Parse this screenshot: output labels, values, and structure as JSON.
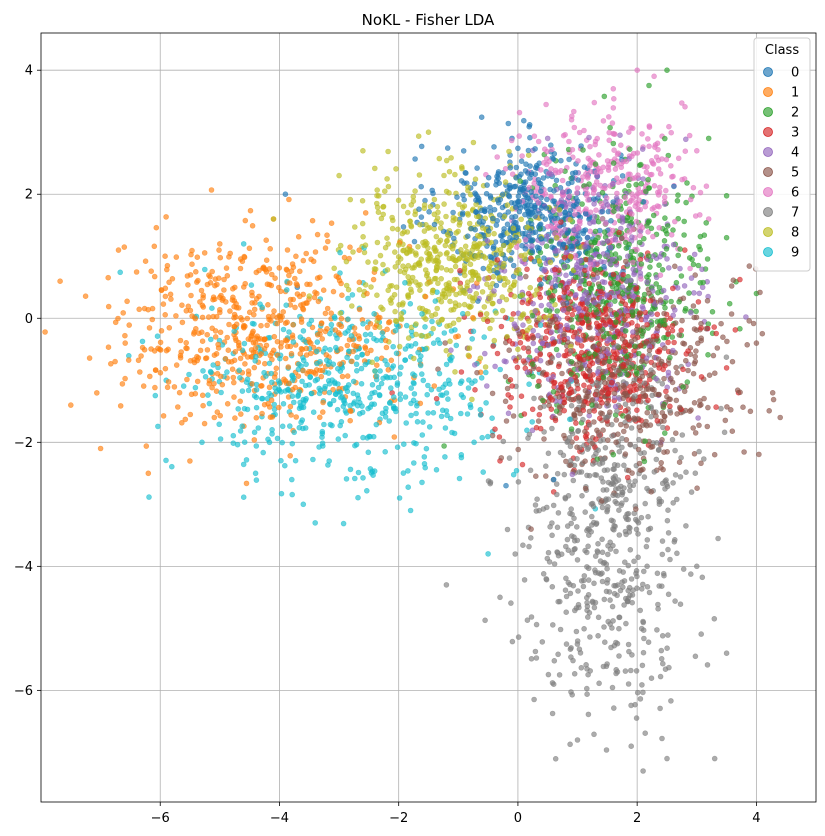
{
  "chart_data": {
    "type": "scatter",
    "title": "NoKL - Fisher LDA",
    "xlabel": "",
    "ylabel": "",
    "xlim": [
      -8.0,
      5.0
    ],
    "ylim": [
      -7.8,
      4.6
    ],
    "xticks": [
      -6,
      -4,
      -2,
      0,
      2,
      4
    ],
    "yticks": [
      -6,
      -4,
      -2,
      0,
      2,
      4
    ],
    "xtick_labels": [
      "−6",
      "−4",
      "−2",
      "0",
      "2",
      "4"
    ],
    "ytick_labels": [
      "−6",
      "−4",
      "−2",
      "0",
      "2",
      "4"
    ],
    "grid": true,
    "legend": {
      "title": "Class",
      "placement": "top-right"
    },
    "point_alpha": 0.65,
    "series": [
      {
        "name": "0",
        "color": "#1f77b4",
        "count": 450,
        "clusters": [
          {
            "center": [
              0.2,
              1.7
            ],
            "spread": [
              0.75,
              0.55
            ],
            "weight": 1.0
          }
        ],
        "notable": [
          [
            -3.9,
            2.0
          ],
          [
            -3.7,
            0.5
          ],
          [
            -0.2,
            -2.7
          ],
          [
            0.6,
            -2.6
          ],
          [
            -0.1,
            2.9
          ]
        ]
      },
      {
        "name": "1",
        "color": "#ff7f0e",
        "count": 600,
        "clusters": [
          {
            "center": [
              -4.3,
              -0.2
            ],
            "spread": [
              1.25,
              0.75
            ],
            "weight": 1.0
          }
        ],
        "notable": [
          [
            -7.5,
            -1.4
          ],
          [
            -7.0,
            -2.1
          ],
          [
            -6.7,
            1.1
          ],
          [
            -6.2,
            -2.5
          ],
          [
            -5.0,
            1.2
          ],
          [
            -4.1,
            1.6
          ],
          [
            -3.0,
            -0.1
          ]
        ]
      },
      {
        "name": "2",
        "color": "#2ca02c",
        "count": 450,
        "clusters": [
          {
            "center": [
              1.7,
              0.6
            ],
            "spread": [
              0.75,
              0.95
            ],
            "weight": 1.0
          }
        ],
        "notable": [
          [
            2.5,
            4.0
          ],
          [
            3.2,
            2.9
          ],
          [
            3.5,
            1.3
          ],
          [
            4.0,
            0.4
          ],
          [
            1.6,
            -2.2
          ]
        ]
      },
      {
        "name": "3",
        "color": "#d62728",
        "count": 500,
        "clusters": [
          {
            "center": [
              1.2,
              -0.5
            ],
            "spread": [
              0.8,
              0.8
            ],
            "weight": 1.0
          }
        ],
        "notable": [
          [
            3.5,
            -0.8
          ],
          [
            3.7,
            -1.2
          ],
          [
            2.8,
            1.1
          ],
          [
            -0.3,
            -2.3
          ],
          [
            0.6,
            -2.8
          ]
        ]
      },
      {
        "name": "4",
        "color": "#9467bd",
        "count": 450,
        "clusters": [
          {
            "center": [
              1.3,
              0.4
            ],
            "spread": [
              0.8,
              0.9
            ],
            "weight": 1.0
          }
        ],
        "notable": [
          [
            0.5,
            2.9
          ],
          [
            2.4,
            -2.0
          ],
          [
            3.1,
            0.5
          ],
          [
            -0.2,
            -0.7
          ]
        ]
      },
      {
        "name": "5",
        "color": "#8c564b",
        "count": 450,
        "clusters": [
          {
            "center": [
              1.8,
              -0.9
            ],
            "spread": [
              0.95,
              0.85
            ],
            "weight": 1.0
          }
        ],
        "notable": [
          [
            4.4,
            -1.6
          ],
          [
            3.9,
            -1.5
          ],
          [
            3.6,
            -0.7
          ],
          [
            4.0,
            -0.4
          ],
          [
            3.3,
            -2.2
          ]
        ]
      },
      {
        "name": "6",
        "color": "#e377c2",
        "count": 350,
        "clusters": [
          {
            "center": [
              1.4,
              2.1
            ],
            "spread": [
              0.7,
              0.6
            ],
            "weight": 1.0
          }
        ],
        "notable": [
          [
            2.0,
            4.0
          ],
          [
            1.6,
            3.7
          ],
          [
            3.0,
            2.7
          ],
          [
            0.9,
            3.2
          ],
          [
            3.2,
            1.6
          ]
        ]
      },
      {
        "name": "7",
        "color": "#7f7f7f",
        "count": 600,
        "clusters": [
          {
            "center": [
              1.5,
              -3.7
            ],
            "spread": [
              0.7,
              1.25
            ],
            "weight": 0.8
          },
          {
            "center": [
              1.7,
              -1.8
            ],
            "spread": [
              0.8,
              0.7
            ],
            "weight": 0.2
          }
        ],
        "notable": [
          [
            2.1,
            -7.3
          ],
          [
            2.5,
            -7.1
          ],
          [
            3.3,
            -7.1
          ],
          [
            1.9,
            -6.9
          ],
          [
            1.0,
            -6.8
          ],
          [
            3.0,
            -4.0
          ],
          [
            3.5,
            -5.4
          ],
          [
            -1.2,
            -4.3
          ],
          [
            -0.3,
            -4.5
          ],
          [
            0.6,
            -5.9
          ]
        ]
      },
      {
        "name": "8",
        "color": "#bcbd22",
        "count": 550,
        "clusters": [
          {
            "center": [
              -1.1,
              0.9
            ],
            "spread": [
              0.85,
              0.65
            ],
            "weight": 1.0
          }
        ],
        "notable": [
          [
            -3.0,
            2.3
          ],
          [
            -2.6,
            2.7
          ],
          [
            -4.1,
            1.6
          ],
          [
            -1.5,
            3.0
          ],
          [
            0.0,
            -0.5
          ]
        ]
      },
      {
        "name": "9",
        "color": "#17becf",
        "count": 550,
        "clusters": [
          {
            "center": [
              -2.8,
              -1.1
            ],
            "spread": [
              1.3,
              0.75
            ],
            "weight": 1.0
          }
        ],
        "notable": [
          [
            -3.4,
            -3.3
          ],
          [
            -3.6,
            -3.0
          ],
          [
            -1.8,
            -3.1
          ],
          [
            -4.4,
            -2.5
          ],
          [
            -0.5,
            -3.8
          ],
          [
            -5.3,
            -2.0
          ],
          [
            -5.9,
            -1.0
          ],
          [
            -4.6,
            1.2
          ]
        ]
      }
    ]
  }
}
